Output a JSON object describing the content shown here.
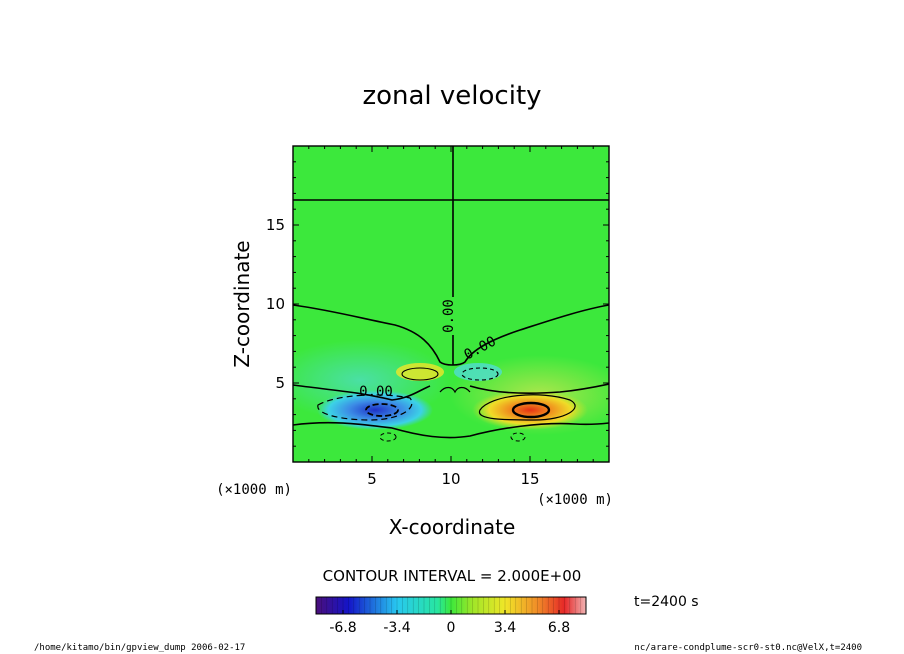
{
  "chart_data": {
    "type": "heatmap",
    "title": "zonal velocity",
    "xlabel": "X-coordinate",
    "ylabel": "Z-coordinate",
    "x_unit": "(×1000 m)",
    "y_unit": "(×1000 m)",
    "xlim": [
      0,
      20
    ],
    "ylim": [
      0,
      20
    ],
    "xticks": [
      5,
      10,
      15
    ],
    "yticks": [
      5,
      10,
      15
    ],
    "xtick_labels": [
      "5",
      "10",
      "15"
    ],
    "ytick_labels": [
      "5",
      "10",
      "15"
    ],
    "contour_interval_text": "CONTOUR INTERVAL = 2.000E+00",
    "contour_labels": [
      "0.00",
      "0.00",
      "0.00"
    ],
    "colorbar": {
      "min": -8.5,
      "max": 8.5,
      "ticks": [
        -6.8,
        -3.4,
        0,
        3.4,
        6.8
      ],
      "tick_labels": [
        "-6.8",
        "-3.4",
        "0",
        "3.4",
        "6.8"
      ]
    },
    "features": [
      {
        "kind": "negative-core",
        "x": 6.0,
        "z": 3.2,
        "min_value": -7.5
      },
      {
        "kind": "positive-core",
        "x": 14.0,
        "z": 3.2,
        "max_value": 7.5
      },
      {
        "kind": "zero-contour",
        "z_level": 16.5
      },
      {
        "kind": "zero-contour",
        "x_level": 10.0
      }
    ]
  },
  "time_label": "t=2400 s",
  "footer": {
    "left": "/home/kitamo/bin/gpview_dump  2006-02-17",
    "right": "nc/arare-condplume-scr0-st0.nc@VelX,t=2400"
  }
}
